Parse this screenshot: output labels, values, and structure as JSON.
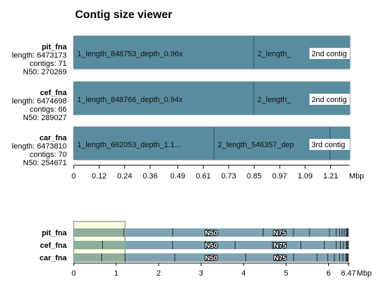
{
  "title": "Contig size viewer",
  "chart_data": [
    {
      "type": "bar",
      "name": "contig-size-bars",
      "x_unit": "Mbp",
      "xlim": [
        0,
        1.3
      ],
      "ticks": [
        "0",
        "0.12",
        "0.24",
        "0.36",
        "0.49",
        "0.61",
        "0.73",
        "0.85",
        "0.97",
        "1.09",
        "1.21"
      ],
      "tick_values": [
        0,
        0.12,
        0.24,
        0.36,
        0.49,
        0.61,
        0.73,
        0.85,
        0.97,
        1.09,
        1.21
      ],
      "color": "#5a8ca0",
      "assemblies": [
        {
          "name": "pit_fna",
          "length_text": "length: 6473173",
          "contigs_text": "contigs: 71",
          "n50_text": "N50: 270269",
          "badge": "2nd contig",
          "contigs": [
            {
              "label": "1_length_848753_depth_0.96x",
              "size": 0.848753
            },
            {
              "label": "2_length_",
              "size": 0.6
            }
          ]
        },
        {
          "name": "cef_fna",
          "length_text": "length: 6474698",
          "contigs_text": "contigs: 66",
          "n50_text": "N50: 289027",
          "badge": "2nd contig",
          "contigs": [
            {
              "label": "1_length_848766_depth_0.94x",
              "size": 0.848766
            },
            {
              "label": "2_length_",
              "size": 0.6
            }
          ]
        },
        {
          "name": "car_fna",
          "length_text": "length: 6473810",
          "contigs_text": "contigs: 70",
          "n50_text": "N50: 254671",
          "badge": "3rd contig",
          "contigs": [
            {
              "label": "1_length_662053_depth_1.1...",
              "size": 0.662053
            },
            {
              "label": "2_length_546357_dep",
              "size": 0.546357
            },
            {
              "label": "",
              "size": 0.3
            }
          ]
        }
      ]
    },
    {
      "type": "bar",
      "name": "cumulative-overview",
      "x_unit": "Mbp",
      "xlim": [
        0,
        6.5
      ],
      "ticks": [
        "0",
        "1",
        "2",
        "3",
        "4",
        "5",
        "6",
        "6.47"
      ],
      "tick_values": [
        0,
        1,
        2,
        3,
        4,
        5,
        6,
        6.47
      ],
      "window": [
        0,
        1.21
      ],
      "color": "#7ea3b3",
      "rows": [
        {
          "name": "pit_fna",
          "total": 6.473173,
          "n50_pos": 3.24,
          "n75_pos": 4.85,
          "boundaries": [
            1.18,
            2.33,
            3.13,
            4.46,
            5.17,
            5.55,
            6.02,
            6.18,
            6.26,
            6.32,
            6.37,
            6.42
          ]
        },
        {
          "name": "cef_fna",
          "total": 6.474698,
          "n50_pos": 3.24,
          "n75_pos": 4.86,
          "boundaries": [
            0.68,
            2.33,
            3.1,
            3.8,
            4.68,
            5.35,
            5.9,
            6.18,
            6.28,
            6.35,
            6.42
          ]
        },
        {
          "name": "car_fna",
          "total": 6.47381,
          "n50_pos": 3.24,
          "n75_pos": 4.86,
          "boundaries": [
            0.66,
            1.21,
            2.38,
            4.05,
            4.8,
            5.18,
            5.73,
            5.98,
            6.14,
            6.26,
            6.34,
            6.41
          ]
        }
      ],
      "n50_label": "N50",
      "n75_label": "N75"
    }
  ]
}
